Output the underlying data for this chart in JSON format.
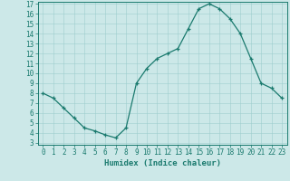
{
  "x": [
    0,
    1,
    2,
    3,
    4,
    5,
    6,
    7,
    8,
    9,
    10,
    11,
    12,
    13,
    14,
    15,
    16,
    17,
    18,
    19,
    20,
    21,
    22,
    23
  ],
  "y": [
    8.0,
    7.5,
    6.5,
    5.5,
    4.5,
    4.2,
    3.8,
    3.5,
    4.5,
    9.0,
    10.5,
    11.5,
    12.0,
    12.5,
    14.5,
    16.5,
    17.0,
    16.5,
    15.5,
    14.0,
    11.5,
    9.0,
    8.5,
    7.5
  ],
  "xlabel": "Humidex (Indice chaleur)",
  "ylim": [
    3,
    17
  ],
  "xlim": [
    -0.5,
    23.5
  ],
  "yticks": [
    3,
    4,
    5,
    6,
    7,
    8,
    9,
    10,
    11,
    12,
    13,
    14,
    15,
    16,
    17
  ],
  "xticks": [
    0,
    1,
    2,
    3,
    4,
    5,
    6,
    7,
    8,
    9,
    10,
    11,
    12,
    13,
    14,
    15,
    16,
    17,
    18,
    19,
    20,
    21,
    22,
    23
  ],
  "line_color": "#1a7a6e",
  "marker_color": "#1a7a6e",
  "bg_color": "#cce8e8",
  "grid_color": "#9ecece",
  "axis_color": "#1a7a6e",
  "label_fontsize": 6.5,
  "tick_fontsize": 5.5
}
